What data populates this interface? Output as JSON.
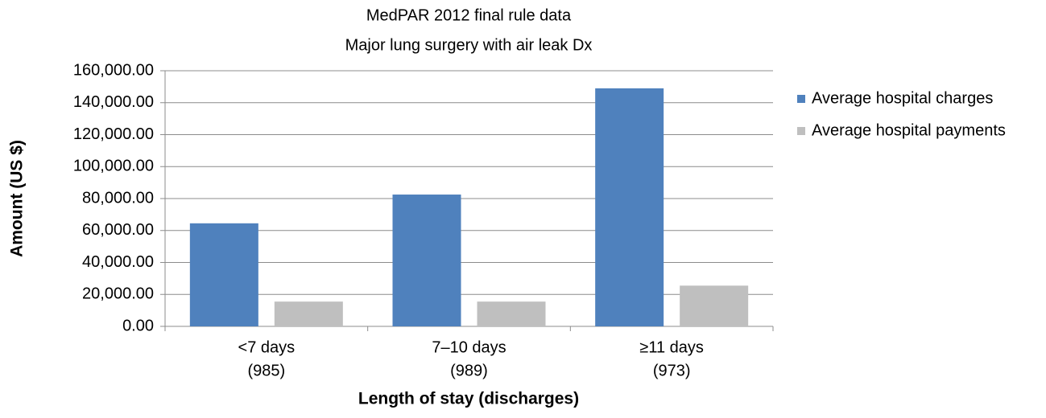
{
  "chart_data": {
    "type": "bar",
    "title": "MedPAR 2012 final rule data",
    "subtitle": "Major lung surgery with air leak Dx",
    "x_label": "Length of stay (discharges)",
    "y_label": "Amount (US $)",
    "categories": [
      [
        "<7 days",
        "(985)"
      ],
      [
        "7–10 days",
        "(989)"
      ],
      [
        "≥11 days",
        "(973)"
      ]
    ],
    "series": [
      {
        "name": "Average hospital charges",
        "color": "#4f81bd",
        "values": [
          64500,
          82500,
          149000
        ]
      },
      {
        "name": "Average hospital payments",
        "color": "#bfbfbf",
        "values": [
          15500,
          15500,
          25500
        ]
      }
    ],
    "ylim": [
      0,
      160000
    ],
    "yticks": [
      {
        "value": 0,
        "label": "0.00"
      },
      {
        "value": 20000,
        "label": "20,000.00"
      },
      {
        "value": 40000,
        "label": "40,000.00"
      },
      {
        "value": 60000,
        "label": "60,000.00"
      },
      {
        "value": 80000,
        "label": "80,000.00"
      },
      {
        "value": 100000,
        "label": "100,000.00"
      },
      {
        "value": 120000,
        "label": "120,000.00"
      },
      {
        "value": 140000,
        "label": "140,000.00"
      },
      {
        "value": 160000,
        "label": "160,000.00"
      }
    ],
    "grid": true,
    "legend": "right"
  }
}
